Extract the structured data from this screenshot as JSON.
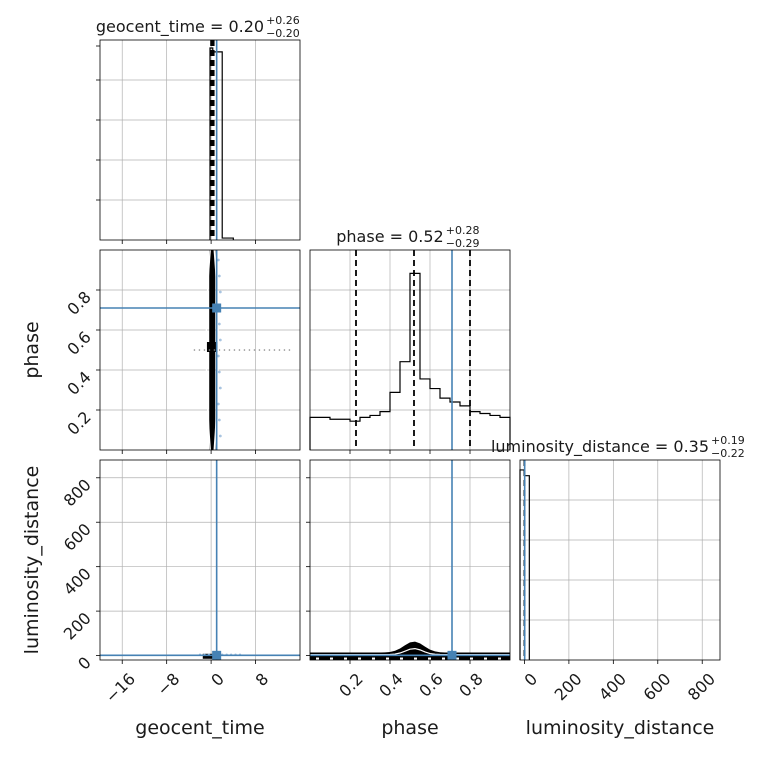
{
  "chart_data": {
    "type": "corner",
    "truth_color": "#4682b4",
    "line_color": "#000000",
    "grid": true,
    "parameters": [
      {
        "name": "geocent_time",
        "axis_label": "geocent_time",
        "range": [
          -20,
          16
        ],
        "ticks": [
          -16,
          -8,
          0,
          8
        ],
        "tick_labels": [
          "−16",
          "−8",
          "0",
          "8"
        ],
        "title_name": "geocent_time",
        "title_value": "0.20",
        "title_plus": "+0.26",
        "title_minus": "−0.20",
        "truth": 1.0,
        "quantiles": [
          0.0,
          0.2,
          0.46
        ],
        "hist_bins": [
          {
            "lo": -0.2,
            "hi": 0.3,
            "count": 1.0
          },
          {
            "lo": 0.3,
            "hi": 2.0,
            "count": 0.98
          },
          {
            "lo": 2.0,
            "hi": 4.0,
            "count": 0.01
          }
        ]
      },
      {
        "name": "phase",
        "axis_label": "phase",
        "range": [
          0.0,
          1.0
        ],
        "ticks": [
          0.2,
          0.4,
          0.6,
          0.8
        ],
        "tick_labels": [
          "0.2",
          "0.4",
          "0.6",
          "0.8"
        ],
        "title_name": "phase",
        "title_value": "0.52",
        "title_plus": "+0.28",
        "title_minus": "−0.29",
        "truth": 0.71,
        "quantiles": [
          0.23,
          0.52,
          0.8
        ],
        "hist_bins": [
          {
            "lo": 0.0,
            "hi": 0.05,
            "count": 0.17
          },
          {
            "lo": 0.05,
            "hi": 0.1,
            "count": 0.17
          },
          {
            "lo": 0.1,
            "hi": 0.15,
            "count": 0.16
          },
          {
            "lo": 0.15,
            "hi": 0.2,
            "count": 0.16
          },
          {
            "lo": 0.2,
            "hi": 0.25,
            "count": 0.15
          },
          {
            "lo": 0.25,
            "hi": 0.3,
            "count": 0.17
          },
          {
            "lo": 0.3,
            "hi": 0.35,
            "count": 0.18
          },
          {
            "lo": 0.35,
            "hi": 0.4,
            "count": 0.2
          },
          {
            "lo": 0.4,
            "hi": 0.45,
            "count": 0.3
          },
          {
            "lo": 0.45,
            "hi": 0.5,
            "count": 0.46
          },
          {
            "lo": 0.5,
            "hi": 0.55,
            "count": 0.92
          },
          {
            "lo": 0.55,
            "hi": 0.6,
            "count": 0.37
          },
          {
            "lo": 0.6,
            "hi": 0.65,
            "count": 0.32
          },
          {
            "lo": 0.65,
            "hi": 0.7,
            "count": 0.27
          },
          {
            "lo": 0.7,
            "hi": 0.75,
            "count": 0.25
          },
          {
            "lo": 0.75,
            "hi": 0.8,
            "count": 0.23
          },
          {
            "lo": 0.8,
            "hi": 0.85,
            "count": 0.2
          },
          {
            "lo": 0.85,
            "hi": 0.9,
            "count": 0.19
          },
          {
            "lo": 0.9,
            "hi": 0.95,
            "count": 0.18
          },
          {
            "lo": 0.95,
            "hi": 1.0,
            "count": 0.17
          }
        ]
      },
      {
        "name": "luminosity_distance",
        "axis_label": "luminosity_distance",
        "range": [
          -20,
          880
        ],
        "ticks": [
          0,
          200,
          400,
          600,
          800
        ],
        "tick_labels": [
          "0",
          "200",
          "400",
          "600",
          "800"
        ],
        "title_name": "luminosity_distance",
        "title_value": "0.35",
        "title_plus": "+0.19",
        "title_minus": "−0.22",
        "truth": 1.0,
        "quantiles": [
          0.13,
          0.35,
          0.54
        ],
        "hist_bins": [
          {
            "lo": -20,
            "hi": 0,
            "count": 0.99
          },
          {
            "lo": 0,
            "hi": 22,
            "count": 0.96
          }
        ]
      }
    ]
  }
}
